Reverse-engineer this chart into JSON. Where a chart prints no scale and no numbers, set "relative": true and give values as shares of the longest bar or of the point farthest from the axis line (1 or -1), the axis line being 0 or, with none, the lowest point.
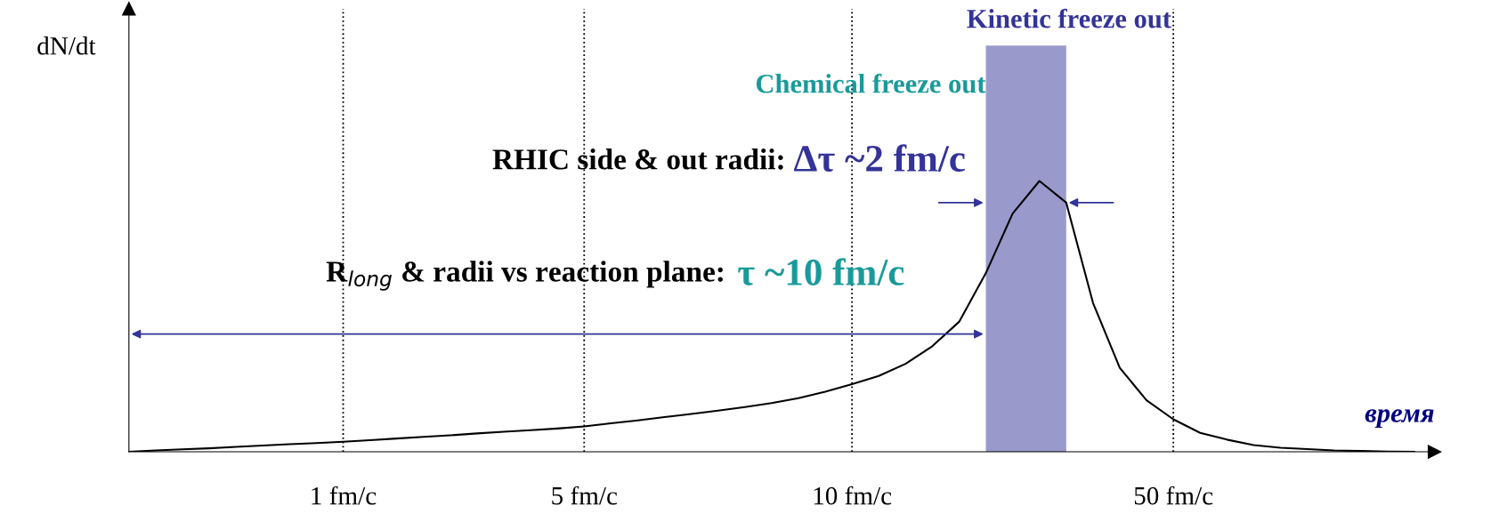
{
  "chart_data": {
    "type": "line",
    "relative": true,
    "xlabel": "время",
    "categories": [
      null,
      null,
      null,
      null,
      null,
      null,
      null,
      null,
      "1 fm/c",
      null,
      null,
      null,
      null,
      null,
      null,
      null,
      null,
      "5 fm/c",
      null,
      null,
      null,
      null,
      null,
      null,
      null,
      null,
      null,
      "10 fm/c",
      null,
      null,
      null,
      null,
      null,
      null,
      null,
      null,
      null,
      null,
      null,
      "50 fm/c",
      null,
      null,
      null,
      null,
      null,
      null,
      null,
      null,
      null
    ],
    "grid": "x",
    "line_style": "solid",
    "marker": "none",
    "series": [
      {
        "color": "#000000",
        "values": [
          0,
          0.005,
          0.009,
          0.013,
          0.018,
          0.023,
          0.028,
          0.032,
          0.037,
          0.043,
          0.049,
          0.055,
          0.061,
          0.068,
          0.074,
          0.08,
          0.086,
          0.094,
          0.105,
          0.116,
          0.128,
          0.14,
          0.152,
          0.165,
          0.18,
          0.198,
          0.222,
          0.25,
          0.28,
          0.325,
          0.39,
          0.48,
          0.66,
          0.88,
          1.0,
          0.92,
          0.55,
          0.31,
          0.19,
          0.12,
          0.07,
          0.045,
          0.025,
          0.015,
          0.01,
          0.005,
          0.003,
          0.001,
          0
        ]
      }
    ],
    "annotations": [
      "dN/dt",
      "Kinetic freeze out",
      "Chemical freeze out",
      "RHIC side & out radii:",
      "Δτ ~2 fm/c",
      "R$_{long}$ & radii vs reaction plane:",
      "τ ~10 fm/c"
    ]
  }
}
